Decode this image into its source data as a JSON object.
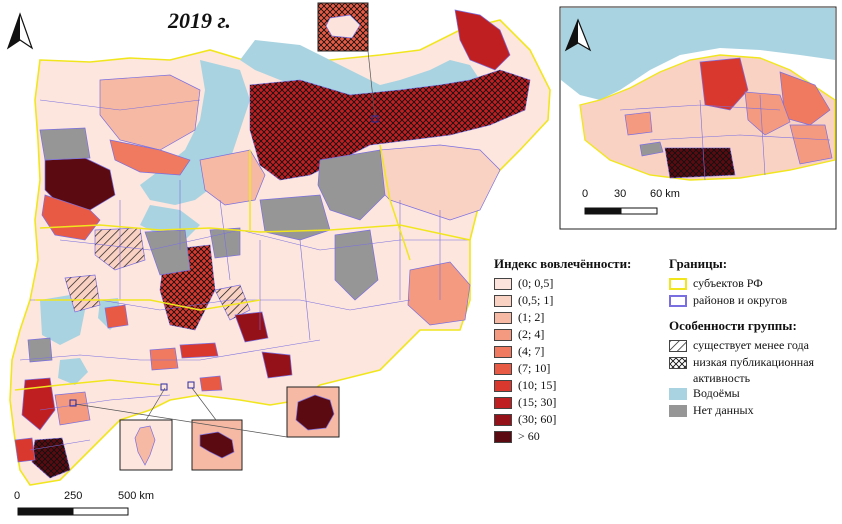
{
  "map_title": "2019 г.",
  "main_scale": {
    "labels": [
      "0",
      "250",
      "500 km"
    ]
  },
  "inset_scale": {
    "labels": [
      "0",
      "30",
      "60 km"
    ]
  },
  "legend_index": {
    "heading": "Индекс вовлечённости:",
    "items": [
      {
        "label": "(0; 0,5]",
        "color": "#fce4dc"
      },
      {
        "label": "(0,5; 1]",
        "color": "#fad2c4"
      },
      {
        "label": "(1; 2]",
        "color": "#f6b9a4"
      },
      {
        "label": "(2; 4]",
        "color": "#f39a80"
      },
      {
        "label": "(4; 7]",
        "color": "#ef7a60"
      },
      {
        "label": "(7; 10]",
        "color": "#e95a44"
      },
      {
        "label": "(10; 15]",
        "color": "#d9382e"
      },
      {
        "label": "(15; 30]",
        "color": "#c01f22"
      },
      {
        "label": "(30; 60]",
        "color": "#94111a"
      },
      {
        "label": "> 60",
        "color": "#5a0a10"
      }
    ]
  },
  "legend_borders": {
    "heading": "Границы:",
    "items": [
      {
        "label": "субъектов РФ",
        "color": "#f1e61e"
      },
      {
        "label": "районов и округов",
        "color": "#7a6fe0"
      }
    ]
  },
  "legend_group": {
    "heading": "Особенности группы:",
    "items": [
      {
        "label": "существует менее года",
        "pattern": "single-hatch"
      },
      {
        "label": "низкая публикационная",
        "label2": "активность",
        "pattern": "cross-hatch"
      },
      {
        "label": "Водоёмы",
        "color": "#a9d3e1"
      },
      {
        "label": "Нет данных",
        "color": "#969696"
      }
    ]
  },
  "icons": {
    "north_arrow": "north-arrow-icon"
  }
}
